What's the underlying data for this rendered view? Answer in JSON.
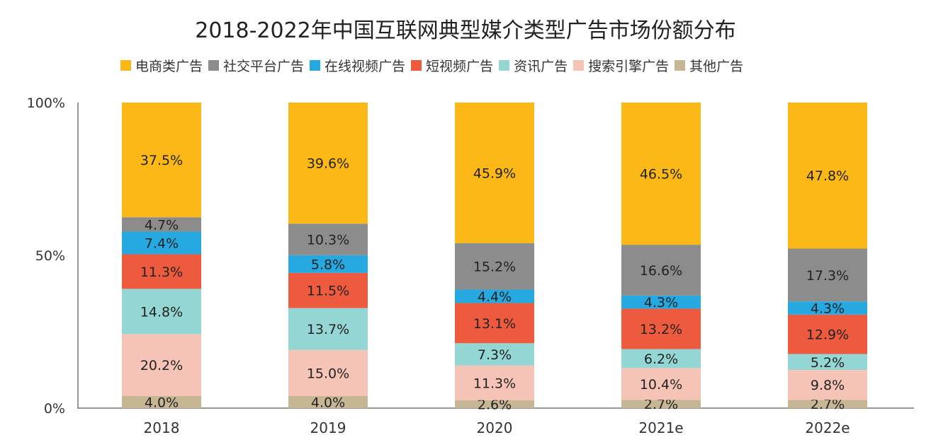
{
  "chart_data": {
    "type": "bar",
    "stacked": true,
    "title": "2018-2022年中国互联网典型媒介类型广告市场份额分布",
    "categories": [
      "2018",
      "2019",
      "2020",
      "2021e",
      "2022e"
    ],
    "y_ticks": [
      "100%",
      "50%",
      "0%"
    ],
    "ylim": [
      0,
      100
    ],
    "legend_position": "top",
    "grid": false,
    "series": [
      {
        "name": "电商类广告",
        "color": "#FBB817",
        "values": [
          37.5,
          39.6,
          45.9,
          46.5,
          47.8
        ]
      },
      {
        "name": "社交平台广告",
        "color": "#8C8C8C",
        "values": [
          4.7,
          10.3,
          15.2,
          16.6,
          17.3
        ]
      },
      {
        "name": "在线视频广告",
        "color": "#26A8E0",
        "values": [
          7.4,
          5.8,
          4.4,
          4.3,
          4.3
        ]
      },
      {
        "name": "短视频广告",
        "color": "#EE5A3E",
        "values": [
          11.3,
          11.5,
          13.1,
          13.2,
          12.9
        ]
      },
      {
        "name": "资讯广告",
        "color": "#93D6D3",
        "values": [
          14.8,
          13.7,
          7.3,
          6.2,
          5.2
        ]
      },
      {
        "name": "搜索引擎广告",
        "color": "#F6C4B6",
        "values": [
          20.2,
          15.0,
          11.3,
          10.4,
          9.8
        ]
      },
      {
        "name": "其他广告",
        "color": "#C7B693",
        "values": [
          4.0,
          4.0,
          2.6,
          2.7,
          2.7
        ]
      }
    ],
    "value_labels": [
      [
        "37.5%",
        "39.6%",
        "45.9%",
        "46.5%",
        "47.8%"
      ],
      [
        "4.7%",
        "10.3%",
        "15.2%",
        "16.6%",
        "17.3%"
      ],
      [
        "7.4%",
        "5.8%",
        "4.4%",
        "4.3%",
        "4.3%"
      ],
      [
        "11.3%",
        "11.5%",
        "13.1%",
        "13.2%",
        "12.9%"
      ],
      [
        "14.8%",
        "13.7%",
        "7.3%",
        "6.2%",
        "5.2%"
      ],
      [
        "20.2%",
        "15.0%",
        "11.3%",
        "10.4%",
        "9.8%"
      ],
      [
        "4.0%",
        "4.0%",
        "2.6%",
        "2.7%",
        "2.7%"
      ]
    ]
  }
}
